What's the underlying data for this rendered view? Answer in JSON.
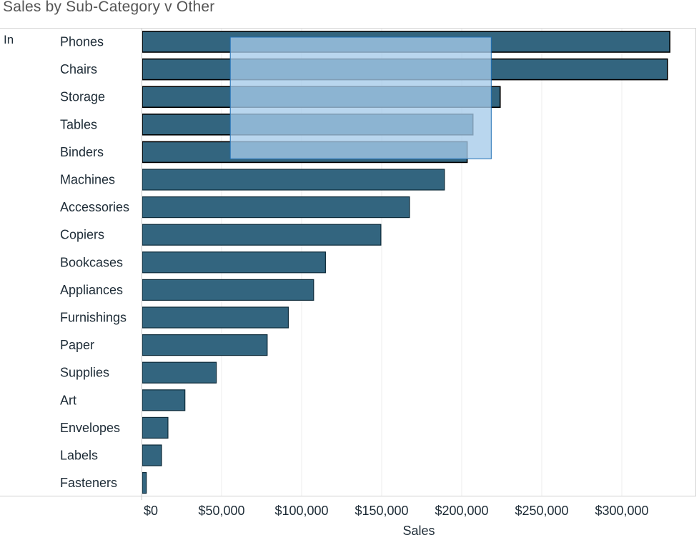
{
  "chart_data": {
    "type": "bar",
    "orientation": "horizontal",
    "title": "Sales by Sub-Category v Other",
    "group_label": "In",
    "categories": [
      "Phones",
      "Chairs",
      "Storage",
      "Tables",
      "Binders",
      "Machines",
      "Accessories",
      "Copiers",
      "Bookcases",
      "Appliances",
      "Furnishings",
      "Paper",
      "Supplies",
      "Art",
      "Envelopes",
      "Labels",
      "Fasteners"
    ],
    "values": [
      330000,
      328500,
      224000,
      207000,
      203400,
      189200,
      167400,
      149500,
      114900,
      107500,
      91700,
      78500,
      46700,
      27100,
      16500,
      12500,
      3000
    ],
    "highlighted": [
      "Phones",
      "Chairs",
      "Storage",
      "Tables",
      "Binders"
    ],
    "xlabel": "Sales",
    "ylabel": "",
    "xlim": [
      0,
      345000
    ],
    "ticks": [
      0,
      50000,
      100000,
      150000,
      200000,
      250000,
      300000
    ],
    "tick_labels": [
      "$0",
      "$50,000",
      "$100,000",
      "$150,000",
      "$200,000",
      "$250,000",
      "$300,000"
    ],
    "grid": true,
    "selection_range": {
      "x_from": 55000,
      "x_to": 218000,
      "categories": [
        "Phones",
        "Chairs",
        "Storage",
        "Tables",
        "Binders"
      ]
    },
    "colors": {
      "bar": "#33657f",
      "bar_border": "#0d2b3a",
      "selection_fill": "#a5cae9",
      "selection_border": "#1f6fb5",
      "grid": "#ececec"
    }
  }
}
